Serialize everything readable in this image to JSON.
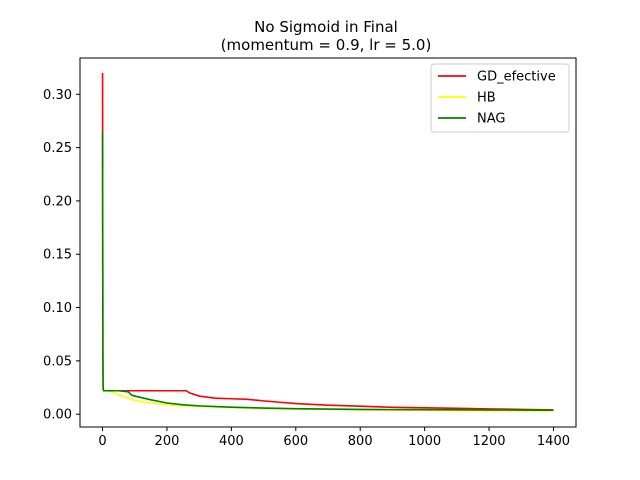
{
  "chart_data": {
    "type": "line",
    "title_line1": "No Sigmoid in Final",
    "title_line2": "(momentum = 0.9, lr = 5.0)",
    "xlabel": "",
    "ylabel": "",
    "xlim": [
      -70,
      1470
    ],
    "ylim": [
      -0.012,
      0.334
    ],
    "xticks": [
      0,
      200,
      400,
      600,
      800,
      1000,
      1200,
      1400
    ],
    "xtick_labels": [
      "0",
      "200",
      "400",
      "600",
      "800",
      "1000",
      "1200",
      "1400"
    ],
    "yticks": [
      0.0,
      0.05,
      0.1,
      0.15,
      0.2,
      0.25,
      0.3
    ],
    "ytick_labels": [
      "0.00",
      "0.05",
      "0.10",
      "0.15",
      "0.20",
      "0.25",
      "0.30"
    ],
    "grid": false,
    "legend_position": "top-right",
    "series": [
      {
        "name": "GD_efective",
        "color": "#ff0000",
        "x": [
          0,
          1,
          2,
          3,
          5,
          10,
          50,
          100,
          150,
          200,
          260,
          270,
          300,
          350,
          400,
          450,
          500,
          550,
          600,
          700,
          800,
          900,
          1000,
          1100,
          1200,
          1300,
          1400
        ],
        "y": [
          0.32,
          0.06,
          0.025,
          0.022,
          0.022,
          0.022,
          0.022,
          0.022,
          0.022,
          0.022,
          0.022,
          0.02,
          0.017,
          0.015,
          0.0145,
          0.014,
          0.0125,
          0.0112,
          0.01,
          0.0085,
          0.0075,
          0.0065,
          0.006,
          0.0055,
          0.005,
          0.0045,
          0.004
        ]
      },
      {
        "name": "HB",
        "color": "#ffff00",
        "x": [
          0,
          1,
          2,
          3,
          5,
          10,
          30,
          50,
          80,
          100,
          150,
          200,
          250,
          300,
          400,
          500,
          600,
          700,
          800,
          900,
          1000,
          1100,
          1200,
          1300,
          1400
        ],
        "y": [
          0.23,
          0.05,
          0.024,
          0.022,
          0.022,
          0.022,
          0.021,
          0.018,
          0.015,
          0.013,
          0.0105,
          0.009,
          0.008,
          0.0073,
          0.0062,
          0.0053,
          0.0048,
          0.0044,
          0.0041,
          0.0039,
          0.0037,
          0.0035,
          0.0033,
          0.0032,
          0.003
        ]
      },
      {
        "name": "NAG",
        "color": "#008000",
        "x": [
          0,
          1,
          2,
          3,
          5,
          10,
          50,
          80,
          90,
          100,
          150,
          200,
          250,
          300,
          400,
          500,
          600,
          700,
          800,
          900,
          1000,
          1100,
          1200,
          1300,
          1400
        ],
        "y": [
          0.265,
          0.05,
          0.024,
          0.022,
          0.022,
          0.022,
          0.022,
          0.021,
          0.018,
          0.017,
          0.0135,
          0.0105,
          0.0088,
          0.0078,
          0.0066,
          0.0058,
          0.0052,
          0.0048,
          0.0045,
          0.0043,
          0.0042,
          0.0041,
          0.004,
          0.0039,
          0.0038
        ]
      }
    ]
  }
}
